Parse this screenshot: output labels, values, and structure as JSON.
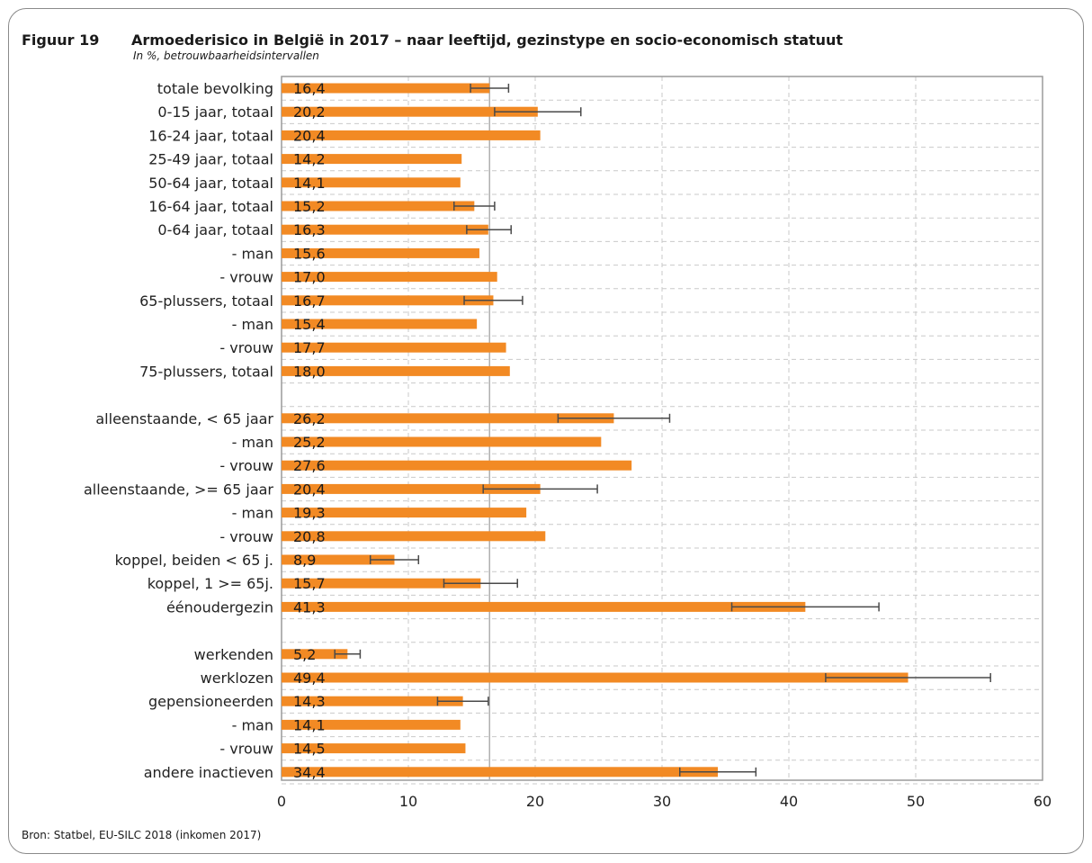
{
  "figure": {
    "number": "Figuur 19",
    "title": "Armoederisico in België in 2017 – naar leeftijd, gezinstype en socio-economisch statuut",
    "subtitle": "In %, betrouwbaarheidsintervallen",
    "source": "Bron: Statbel, EU-SILC 2018 (inkomen 2017)"
  },
  "colors": {
    "bar": "#f28a24",
    "error": "#4a4a4a",
    "grid": "#c9c9c9",
    "axis": "#9a9a9a",
    "reference": "#b0b0b0"
  },
  "chart_data": {
    "type": "bar",
    "orientation": "horizontal",
    "xlim": [
      0,
      60
    ],
    "xticks": [
      0,
      10,
      20,
      30,
      40,
      50,
      60
    ],
    "grid": true,
    "reference_line": 16.4,
    "categories": [
      "totale bevolking",
      "0-15 jaar, totaal",
      "16-24 jaar, totaal",
      "25-49 jaar, totaal",
      "50-64 jaar, totaal",
      "16-64 jaar, totaal",
      "0-64 jaar, totaal",
      "- man",
      "- vrouw",
      "65-plussers, totaal",
      "- man",
      "- vrouw",
      "75-plussers, totaal",
      "",
      "alleenstaande, < 65 jaar",
      "- man",
      "- vrouw",
      "alleenstaande, >= 65 jaar",
      "- man",
      "- vrouw",
      "koppel, beiden < 65 j.",
      "koppel, 1 >= 65j.",
      "éénoudergezin",
      "",
      "werkenden",
      "werklozen",
      "gepensioneerden",
      "- man",
      "- vrouw",
      "andere inactieven"
    ],
    "values": [
      16.4,
      20.2,
      20.4,
      14.2,
      14.1,
      15.2,
      16.3,
      15.6,
      17.0,
      16.7,
      15.4,
      17.7,
      18.0,
      null,
      26.2,
      25.2,
      27.6,
      20.4,
      19.3,
      20.8,
      8.9,
      15.7,
      41.3,
      null,
      5.2,
      49.4,
      14.3,
      14.1,
      14.5,
      34.4
    ],
    "value_labels": [
      "16,4",
      "20,2",
      "20,4",
      "14,2",
      "14,1",
      "15,2",
      "16,3",
      "15,6",
      "17,0",
      "16,7",
      "15,4",
      "17,7",
      "18,0",
      "",
      "26,2",
      "25,2",
      "27,6",
      "20,4",
      "19,3",
      "20,8",
      "8,9",
      "15,7",
      "41,3",
      "",
      "5,2",
      "49,4",
      "14,3",
      "14,1",
      "14,5",
      "34,4"
    ],
    "error_low": [
      14.9,
      16.8,
      null,
      null,
      null,
      13.6,
      14.6,
      null,
      null,
      14.4,
      null,
      null,
      null,
      null,
      21.8,
      null,
      null,
      15.9,
      null,
      null,
      7.0,
      12.8,
      35.5,
      null,
      4.2,
      42.9,
      12.3,
      null,
      null,
      31.4
    ],
    "error_high": [
      17.9,
      23.6,
      null,
      null,
      null,
      16.8,
      18.1,
      null,
      null,
      19.0,
      null,
      null,
      null,
      null,
      30.6,
      null,
      null,
      24.9,
      null,
      null,
      10.8,
      18.6,
      47.1,
      null,
      6.2,
      55.9,
      16.3,
      null,
      null,
      37.4
    ]
  }
}
